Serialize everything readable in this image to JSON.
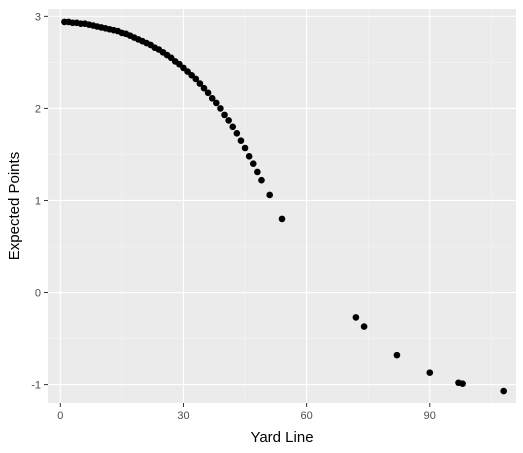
{
  "chart_data": {
    "type": "scatter",
    "title": "",
    "xlabel": "Yard Line",
    "ylabel": "Expected Points",
    "xlim": [
      -3,
      111
    ],
    "ylim": [
      -1.2,
      3.08
    ],
    "x_ticks": [
      0,
      30,
      60,
      90
    ],
    "y_ticks": [
      -1,
      0,
      1,
      2,
      3
    ],
    "x_tick_labels": [
      "0",
      "30",
      "60",
      "90"
    ],
    "y_tick_labels": [
      "-1",
      "0",
      "1",
      "2",
      "3"
    ],
    "grid": true,
    "legend": "none",
    "colors": {
      "panel_background": "#ebebeb",
      "grid_major": "#ffffff",
      "grid_minor": "#f5f5f5",
      "point": "#000000",
      "tick": "#333333"
    },
    "points": [
      {
        "x": 1,
        "y": 2.94
      },
      {
        "x": 2,
        "y": 2.94
      },
      {
        "x": 3,
        "y": 2.93
      },
      {
        "x": 4,
        "y": 2.93
      },
      {
        "x": 5,
        "y": 2.92
      },
      {
        "x": 6,
        "y": 2.92
      },
      {
        "x": 7,
        "y": 2.91
      },
      {
        "x": 8,
        "y": 2.9
      },
      {
        "x": 9,
        "y": 2.89
      },
      {
        "x": 10,
        "y": 2.88
      },
      {
        "x": 11,
        "y": 2.87
      },
      {
        "x": 12,
        "y": 2.86
      },
      {
        "x": 13,
        "y": 2.85
      },
      {
        "x": 14,
        "y": 2.84
      },
      {
        "x": 15,
        "y": 2.82
      },
      {
        "x": 16,
        "y": 2.81
      },
      {
        "x": 17,
        "y": 2.79
      },
      {
        "x": 18,
        "y": 2.77
      },
      {
        "x": 19,
        "y": 2.75
      },
      {
        "x": 20,
        "y": 2.73
      },
      {
        "x": 21,
        "y": 2.71
      },
      {
        "x": 22,
        "y": 2.69
      },
      {
        "x": 23,
        "y": 2.66
      },
      {
        "x": 24,
        "y": 2.64
      },
      {
        "x": 25,
        "y": 2.61
      },
      {
        "x": 26,
        "y": 2.58
      },
      {
        "x": 27,
        "y": 2.55
      },
      {
        "x": 28,
        "y": 2.51
      },
      {
        "x": 29,
        "y": 2.48
      },
      {
        "x": 30,
        "y": 2.44
      },
      {
        "x": 31,
        "y": 2.4
      },
      {
        "x": 32,
        "y": 2.36
      },
      {
        "x": 33,
        "y": 2.32
      },
      {
        "x": 34,
        "y": 2.27
      },
      {
        "x": 35,
        "y": 2.22
      },
      {
        "x": 36,
        "y": 2.17
      },
      {
        "x": 37,
        "y": 2.11
      },
      {
        "x": 38,
        "y": 2.06
      },
      {
        "x": 39,
        "y": 2.0
      },
      {
        "x": 40,
        "y": 1.93
      },
      {
        "x": 41,
        "y": 1.87
      },
      {
        "x": 42,
        "y": 1.8
      },
      {
        "x": 43,
        "y": 1.73
      },
      {
        "x": 44,
        "y": 1.65
      },
      {
        "x": 45,
        "y": 1.57
      },
      {
        "x": 46,
        "y": 1.48
      },
      {
        "x": 47,
        "y": 1.4
      },
      {
        "x": 48,
        "y": 1.31
      },
      {
        "x": 49,
        "y": 1.22
      },
      {
        "x": 51,
        "y": 1.06
      },
      {
        "x": 54,
        "y": 0.8
      },
      {
        "x": 72,
        "y": -0.27
      },
      {
        "x": 74,
        "y": -0.37
      },
      {
        "x": 82,
        "y": -0.68
      },
      {
        "x": 90,
        "y": -0.87
      },
      {
        "x": 97,
        "y": -0.98
      },
      {
        "x": 98,
        "y": -0.99
      },
      {
        "x": 108,
        "y": -1.07
      }
    ]
  }
}
